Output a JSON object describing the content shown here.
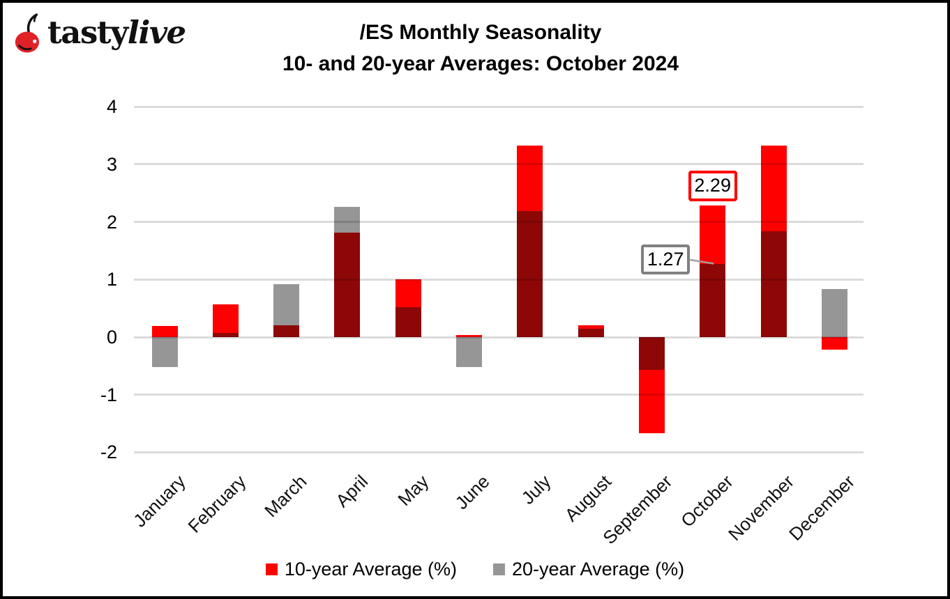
{
  "header": {
    "logo": {
      "brand_first": "tasty",
      "brand_second": "live",
      "cherry_color": "#E02127"
    },
    "title_line1": "/ES Monthly Seasonality",
    "title_line2": "10- and 20-year Averages: October 2024"
  },
  "chart_data": {
    "type": "bar",
    "subtype": "overlaid-bars",
    "title": "/ES Monthly Seasonality 10- and 20-year Averages: October 2024",
    "categories": [
      "January",
      "February",
      "March",
      "April",
      "May",
      "June",
      "July",
      "August",
      "September",
      "October",
      "November",
      "December"
    ],
    "series": [
      {
        "name": "10-year Average (%)",
        "color": "#FF0000",
        "values": [
          0.19,
          0.57,
          0.2,
          1.81,
          1.0,
          0.04,
          3.32,
          0.21,
          -1.67,
          2.29,
          3.33,
          -0.22
        ]
      },
      {
        "name": "20-year Average (%)",
        "color": "#969696",
        "values": [
          -0.52,
          0.07,
          0.92,
          2.26,
          0.52,
          -0.52,
          2.19,
          0.14,
          -0.57,
          1.27,
          1.84,
          0.84
        ]
      }
    ],
    "overlap_color": "#8E0707",
    "y_ticks": [
      4,
      3,
      2,
      1,
      0,
      -1,
      -2
    ],
    "ylim": [
      -2,
      4
    ],
    "grid": true,
    "gridline_color": "#D9D9D9",
    "legend_position": "bottom",
    "annotations": [
      {
        "text": "2.29",
        "month": "October",
        "series": "10-year Average (%)",
        "value": 2.29,
        "border_color": "#FF0000",
        "placement": "above"
      },
      {
        "text": "1.27",
        "month": "October",
        "series": "20-year Average (%)",
        "value": 1.27,
        "border_color": "#808080",
        "placement": "left-leader",
        "leader_color": "#A0A0A0"
      }
    ]
  },
  "legend": {
    "items": [
      {
        "label": "10-year Average (%)",
        "color": "#FF0000"
      },
      {
        "label": "20-year Average (%)",
        "color": "#969696"
      }
    ]
  }
}
